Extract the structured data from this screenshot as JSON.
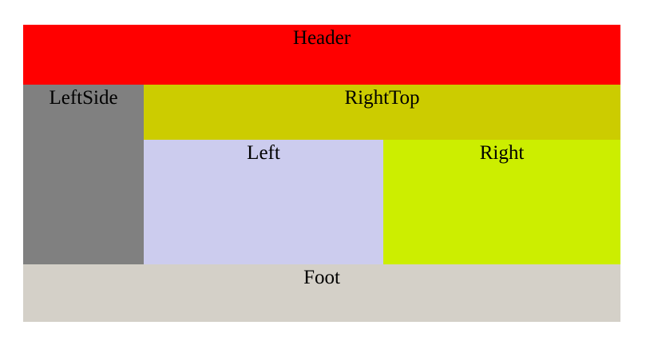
{
  "layout": {
    "header": {
      "label": "Header",
      "color": "#ff0000"
    },
    "leftside": {
      "label": "LeftSide",
      "color": "#808080"
    },
    "righttop": {
      "label": "RightTop",
      "color": "#cccc00"
    },
    "left": {
      "label": "Left",
      "color": "#ccccee"
    },
    "right": {
      "label": "Right",
      "color": "#ccee00"
    },
    "foot": {
      "label": "Foot",
      "color": "#d4d0c8"
    }
  }
}
